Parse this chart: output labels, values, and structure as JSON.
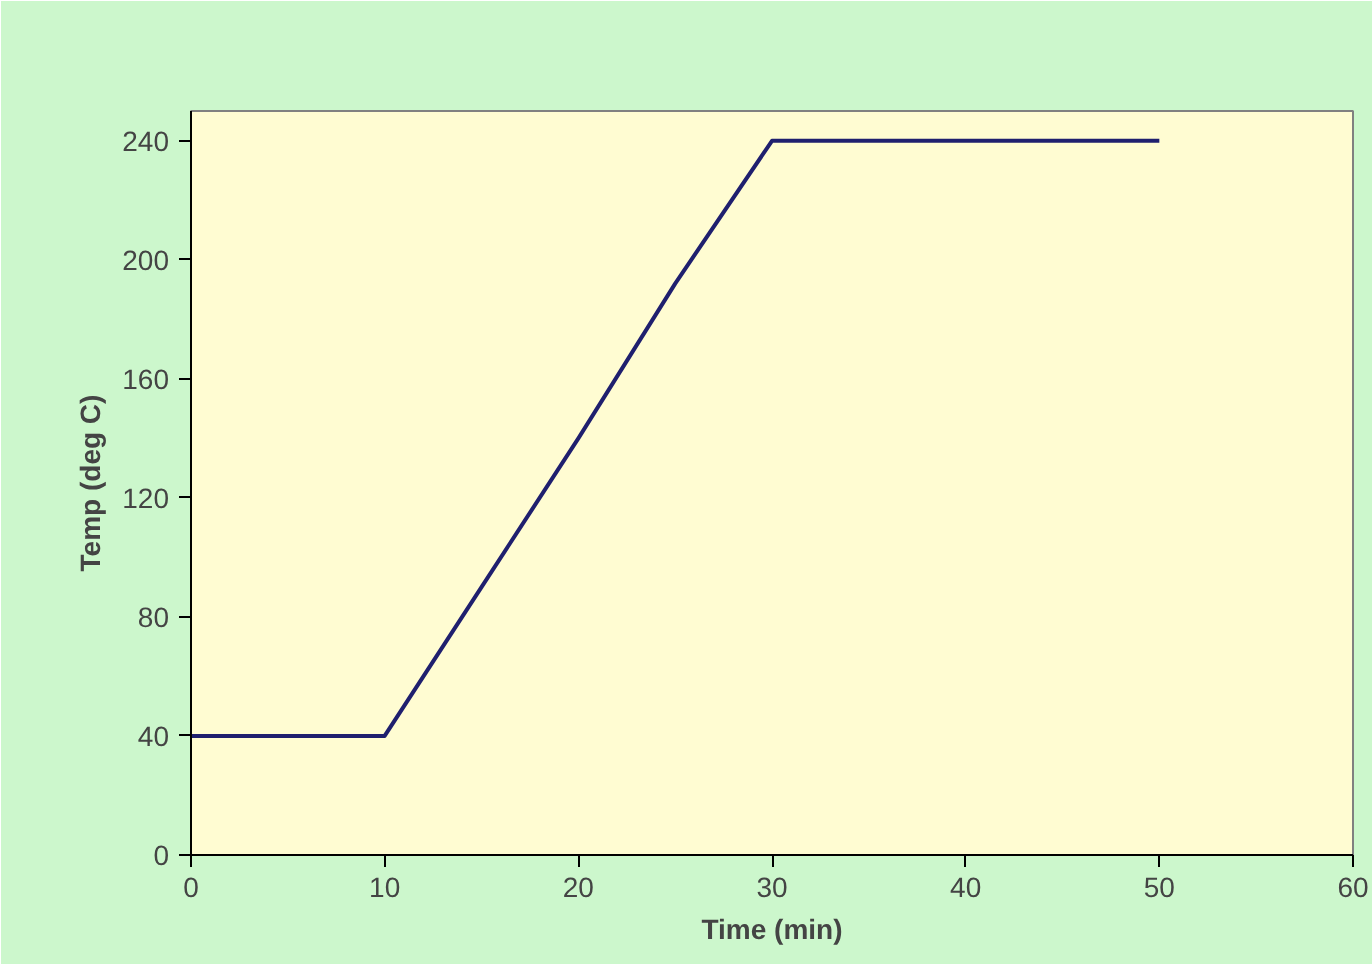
{
  "chart_data": {
    "type": "line",
    "xlabel": "Time (min)",
    "ylabel": "Temp (deg C)",
    "x": [
      0,
      10,
      15,
      20,
      25,
      30,
      40,
      50
    ],
    "series": [
      {
        "color": "#1f1f6e",
        "values": [
          40,
          40,
          90,
          140,
          192,
          240,
          240,
          240
        ]
      }
    ],
    "xlim": [
      0,
      60
    ],
    "xticks": [
      0,
      10,
      20,
      30,
      40,
      50,
      60
    ],
    "ylim": [
      0,
      250
    ],
    "yticks": [
      0,
      40,
      80,
      120,
      160,
      200,
      240
    ],
    "grid": false,
    "marker": "none",
    "line_style": "solid"
  }
}
